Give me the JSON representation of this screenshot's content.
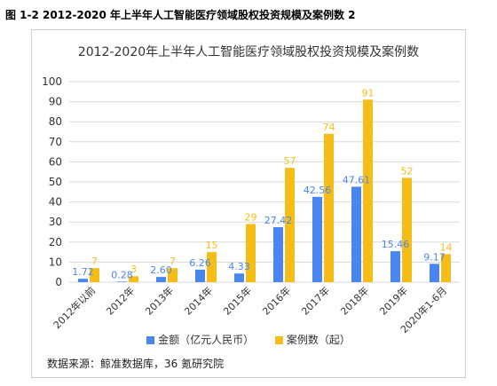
{
  "caption": "图 1-2 2012-2020 年上半年人工智能医疗领域股权投资规模及案例数 2",
  "source_note": "数据来源：鲸准数据库，36 氪研究院",
  "colors": {
    "amount": "#4a86f0",
    "cases": "#f6bd16",
    "grid": "#d9d9d9",
    "axis_text": "#333333"
  },
  "chart_data": {
    "type": "bar",
    "title": "2012-2020年上半年人工智能医疗领域股权投资规模及案例数",
    "categories": [
      "2012年以前",
      "2012年",
      "2013年",
      "2014年",
      "2015年",
      "2016年",
      "2017年",
      "2018年",
      "2019年",
      "2020年1-6月"
    ],
    "ylim": [
      0,
      100
    ],
    "yticks": [
      0,
      10,
      20,
      30,
      40,
      50,
      60,
      70,
      80,
      90,
      100
    ],
    "grid": true,
    "legend_position": "bottom",
    "series": [
      {
        "name": "金额（亿元人民币）",
        "values": [
          1.72,
          0.28,
          2.6,
          6.26,
          4.33,
          27.42,
          42.56,
          47.61,
          15.46,
          9.17
        ],
        "labels": [
          "1.72",
          "0.28",
          "2.60",
          "6.26",
          "4.33",
          "27.42",
          "42.56",
          "47.61",
          "15.46",
          "9.17"
        ]
      },
      {
        "name": "案例数（起）",
        "values": [
          7,
          3,
          7,
          15,
          29,
          57,
          74,
          91,
          52,
          14
        ],
        "labels": [
          "7",
          "3",
          "7",
          "15",
          "29",
          "57",
          "74",
          "91",
          "52",
          "14"
        ]
      }
    ]
  }
}
